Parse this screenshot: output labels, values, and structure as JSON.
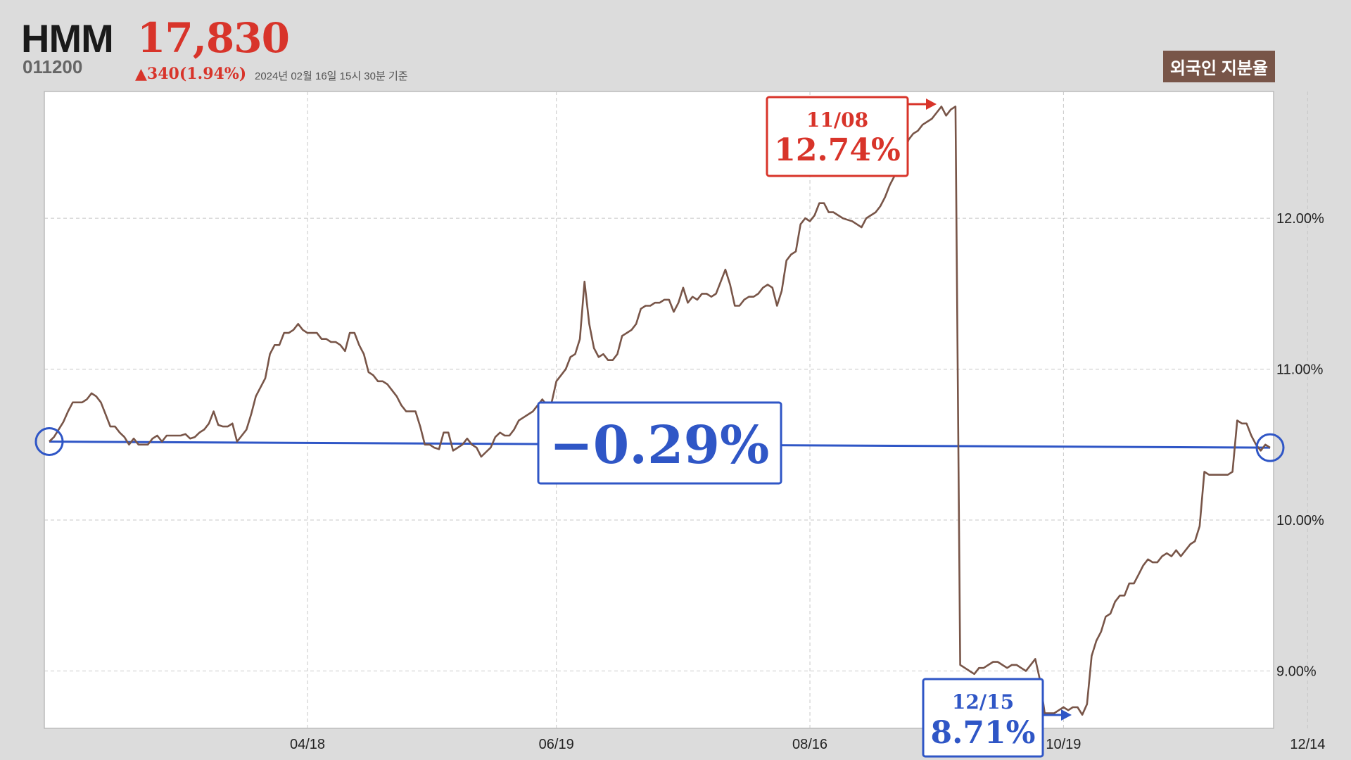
{
  "header": {
    "name": "HMM",
    "price": "17,830",
    "code": "011200",
    "change": "▲340(1.94%)",
    "as_of": "2024년 02월 16일 15시 30분 기준",
    "badge": "외국인 지분율"
  },
  "annotations": {
    "high": {
      "date": "11/08",
      "value": "12.74%",
      "color": "#d8342a"
    },
    "low": {
      "date": "12/15",
      "value": "8.71%",
      "color": "#2f56c6"
    },
    "change": {
      "value": "−0.29%",
      "color": "#2f56c6"
    }
  },
  "chart_data": {
    "type": "line",
    "title": "",
    "xlabel": "",
    "ylabel": "",
    "ylim": [
      8.62,
      12.84
    ],
    "y_ticks": [
      {
        "v": 9,
        "label": "9.00%"
      },
      {
        "v": 10,
        "label": "10.00%"
      },
      {
        "v": 11,
        "label": "11.00%"
      },
      {
        "v": 12,
        "label": "12.00%"
      }
    ],
    "x_ticks": [
      {
        "i": 55,
        "label": "04/18"
      },
      {
        "i": 108,
        "label": "06/19"
      },
      {
        "i": 162,
        "label": "08/16"
      },
      {
        "i": 216,
        "label": "10/19"
      },
      {
        "i": 268,
        "label": "12/14"
      }
    ],
    "grid": true,
    "line_color": "#785548",
    "trend_color": "#2f56c6",
    "series": [
      {
        "values": [
          10.52,
          10.55,
          10.6,
          10.65,
          10.72,
          10.78,
          10.78,
          10.78,
          10.8,
          10.84,
          10.82,
          10.78,
          10.7,
          10.62,
          10.62,
          10.58,
          10.55,
          10.5,
          10.54,
          10.5,
          10.5,
          10.5,
          10.54,
          10.56,
          10.52,
          10.56,
          10.56,
          10.56,
          10.56,
          10.57,
          10.54,
          10.55,
          10.58,
          10.6,
          10.64,
          10.72,
          10.63,
          10.62,
          10.62,
          10.64,
          10.52,
          10.56,
          10.6,
          10.7,
          10.82,
          10.88,
          10.94,
          11.1,
          11.16,
          11.16,
          11.24,
          11.24,
          11.26,
          11.3,
          11.26,
          11.24,
          11.24,
          11.24,
          11.2,
          11.2,
          11.18,
          11.18,
          11.16,
          11.12,
          11.24,
          11.24,
          11.16,
          11.1,
          10.98,
          10.96,
          10.92,
          10.92,
          10.9,
          10.86,
          10.82,
          10.76,
          10.72,
          10.72,
          10.72,
          10.62,
          10.5,
          10.5,
          10.48,
          10.47,
          10.58,
          10.58,
          10.46,
          10.48,
          10.5,
          10.54,
          10.5,
          10.48,
          10.42,
          10.45,
          10.48,
          10.55,
          10.58,
          10.56,
          10.56,
          10.6,
          10.66,
          10.68,
          10.7,
          10.72,
          10.76,
          10.8,
          10.76,
          10.78,
          10.92,
          10.96,
          11.0,
          11.08,
          11.1,
          11.2,
          11.58,
          11.3,
          11.14,
          11.08,
          11.1,
          11.06,
          11.06,
          11.1,
          11.22,
          11.24,
          11.26,
          11.3,
          11.4,
          11.42,
          11.42,
          11.44,
          11.44,
          11.46,
          11.46,
          11.38,
          11.44,
          11.54,
          11.44,
          11.48,
          11.46,
          11.5,
          11.5,
          11.48,
          11.5,
          11.58,
          11.66,
          11.56,
          11.42,
          11.42,
          11.46,
          11.48,
          11.48,
          11.5,
          11.54,
          11.56,
          11.54,
          11.42,
          11.52,
          11.72,
          11.76,
          11.78,
          11.96,
          12.0,
          11.98,
          12.02,
          12.1,
          12.1,
          12.04,
          12.04,
          12.02,
          12.0,
          11.99,
          11.98,
          11.96,
          11.94,
          12.0,
          12.02,
          12.04,
          12.08,
          12.14,
          12.22,
          12.28,
          12.34,
          12.42,
          12.52,
          12.56,
          12.58,
          12.62,
          12.64,
          12.66,
          12.7,
          12.74,
          12.68,
          12.72,
          12.74,
          9.04,
          9.02,
          9.0,
          8.98,
          9.02,
          9.02,
          9.04,
          9.06,
          9.06,
          9.04,
          9.02,
          9.04,
          9.04,
          9.02,
          9.0,
          9.04,
          9.08,
          8.94,
          8.72,
          8.72,
          8.72,
          8.74,
          8.76,
          8.74,
          8.76,
          8.76,
          8.71,
          8.78,
          9.1,
          9.2,
          9.26,
          9.36,
          9.38,
          9.46,
          9.5,
          9.5,
          9.58,
          9.58,
          9.64,
          9.7,
          9.74,
          9.72,
          9.72,
          9.76,
          9.78,
          9.76,
          9.8,
          9.76,
          9.8,
          9.84,
          9.86,
          9.96,
          10.32,
          10.3,
          10.3,
          10.3,
          10.3,
          10.3,
          10.32,
          10.66,
          10.64,
          10.64,
          10.56,
          10.5,
          10.46,
          10.5,
          10.48
        ]
      }
    ]
  }
}
